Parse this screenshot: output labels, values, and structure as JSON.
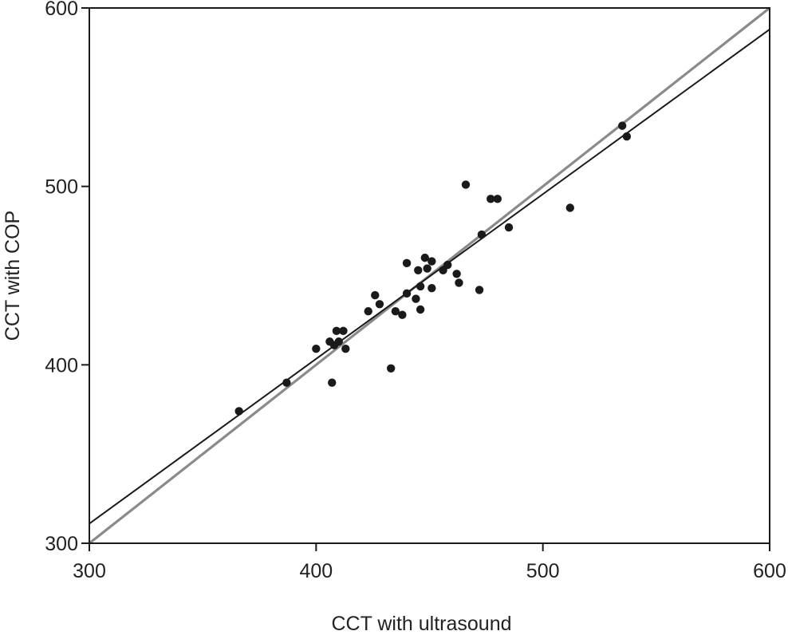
{
  "chart_data": {
    "type": "scatter",
    "title": "",
    "xlabel": "CCT with ultrasound",
    "ylabel": "CCT with COP",
    "xlim": [
      300,
      600
    ],
    "ylim": [
      300,
      600
    ],
    "xticks": [
      "300",
      "400",
      "500",
      "600"
    ],
    "yticks": [
      "300",
      "400",
      "500",
      "600"
    ],
    "grid": false,
    "legend": "none",
    "colors": {
      "points": "#1a1a1a",
      "identity_line": "#8a8a8a",
      "fit_line": "#1a1a1a",
      "axes": "#1a1a1a"
    },
    "points": [
      {
        "x": 366,
        "y": 374
      },
      {
        "x": 387,
        "y": 390
      },
      {
        "x": 400,
        "y": 409
      },
      {
        "x": 406,
        "y": 413
      },
      {
        "x": 407,
        "y": 390
      },
      {
        "x": 408,
        "y": 411
      },
      {
        "x": 409,
        "y": 419
      },
      {
        "x": 410,
        "y": 413
      },
      {
        "x": 412,
        "y": 419
      },
      {
        "x": 413,
        "y": 409
      },
      {
        "x": 423,
        "y": 430
      },
      {
        "x": 426,
        "y": 439
      },
      {
        "x": 428,
        "y": 434
      },
      {
        "x": 433,
        "y": 398
      },
      {
        "x": 435,
        "y": 430
      },
      {
        "x": 438,
        "y": 428
      },
      {
        "x": 440,
        "y": 457
      },
      {
        "x": 440,
        "y": 440
      },
      {
        "x": 444,
        "y": 437
      },
      {
        "x": 445,
        "y": 453
      },
      {
        "x": 446,
        "y": 431
      },
      {
        "x": 446,
        "y": 444
      },
      {
        "x": 448,
        "y": 460
      },
      {
        "x": 449,
        "y": 454
      },
      {
        "x": 451,
        "y": 443
      },
      {
        "x": 451,
        "y": 458
      },
      {
        "x": 456,
        "y": 453
      },
      {
        "x": 458,
        "y": 456
      },
      {
        "x": 462,
        "y": 451
      },
      {
        "x": 463,
        "y": 446
      },
      {
        "x": 466,
        "y": 501
      },
      {
        "x": 472,
        "y": 442
      },
      {
        "x": 473,
        "y": 473
      },
      {
        "x": 477,
        "y": 493
      },
      {
        "x": 480,
        "y": 493
      },
      {
        "x": 485,
        "y": 477
      },
      {
        "x": 512,
        "y": 488
      },
      {
        "x": 535,
        "y": 534
      },
      {
        "x": 537,
        "y": 528
      }
    ],
    "identity_line": [
      [
        300,
        300
      ],
      [
        600,
        600
      ]
    ],
    "fit_line": [
      [
        300,
        311
      ],
      [
        600,
        588
      ]
    ]
  }
}
